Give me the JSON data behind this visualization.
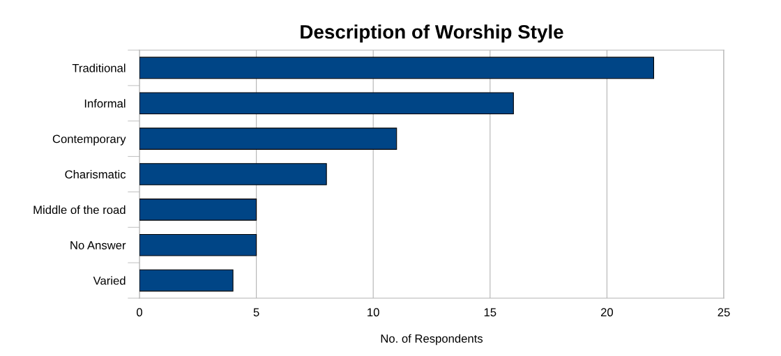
{
  "chart_data": {
    "type": "bar",
    "orientation": "horizontal",
    "title": "Description of Worship Style",
    "xlabel": "No. of Respondents",
    "categories": [
      "Traditional",
      "Informal",
      "Contemporary",
      "Charismatic",
      "Middle of the road",
      "No Answer",
      "Varied"
    ],
    "values": [
      22,
      16,
      11,
      8,
      5,
      5,
      4
    ],
    "color": "#004586",
    "xlim": [
      0,
      25
    ],
    "xticks": [
      0,
      5,
      10,
      15,
      20,
      25
    ],
    "grid": "x"
  }
}
